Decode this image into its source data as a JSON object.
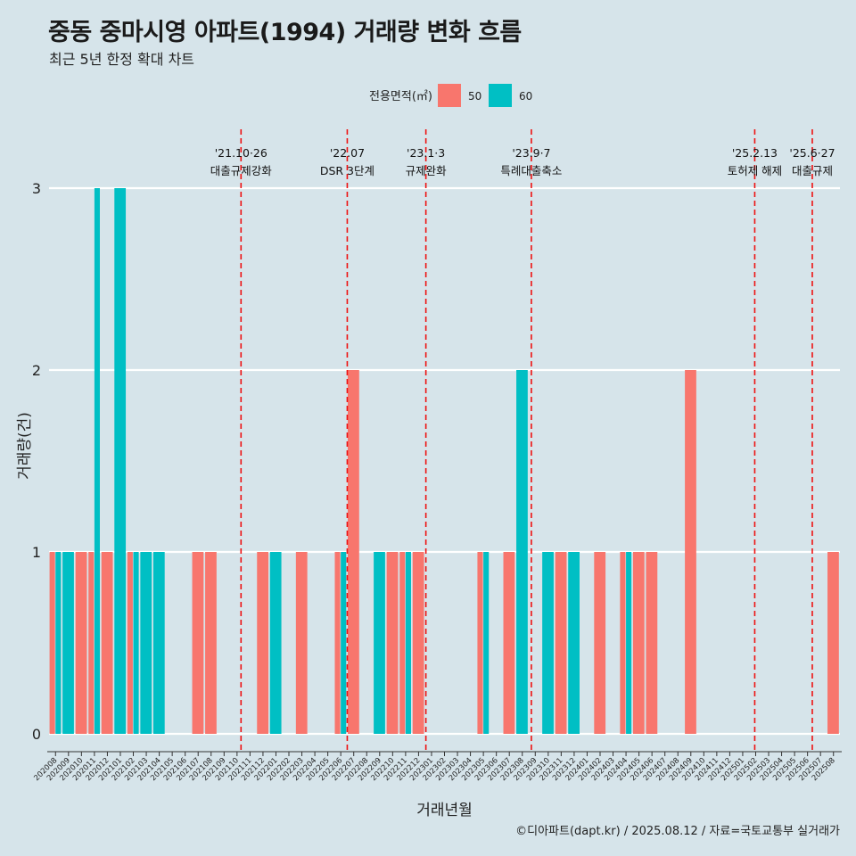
{
  "title": "중동 중마시영 아파트(1994) 거래량 변화 흐름",
  "subtitle": "최근 5년 한정 확대 차트",
  "caption": "©디아파트(dapt.kr) / 2025.08.12 / 자료=국토교통부 실거래가",
  "chart_data": {
    "type": "bar",
    "xlabel": "거래년월",
    "ylabel": "거래량(건)",
    "ylim": [
      0,
      3
    ],
    "yticks": [
      "0",
      "1",
      "2",
      "3"
    ],
    "legend": {
      "title": "전용면적(㎡)",
      "placement": "top",
      "entries": [
        {
          "name": "50",
          "color": "#f8766d"
        },
        {
          "name": "60",
          "color": "#00bfc4"
        }
      ]
    },
    "categories": [
      "202008",
      "202009",
      "202010",
      "202011",
      "202012",
      "202101",
      "202102",
      "202103",
      "202104",
      "202105",
      "202106",
      "202107",
      "202108",
      "202109",
      "202110",
      "202111",
      "202112",
      "202201",
      "202202",
      "202203",
      "202204",
      "202205",
      "202206",
      "202207",
      "202208",
      "202209",
      "202210",
      "202211",
      "202212",
      "202301",
      "202302",
      "202303",
      "202304",
      "202305",
      "202306",
      "202307",
      "202308",
      "202309",
      "202310",
      "202311",
      "202312",
      "202401",
      "202402",
      "202403",
      "202404",
      "202405",
      "202406",
      "202407",
      "202408",
      "202409",
      "202410",
      "202411",
      "202412",
      "202501",
      "202502",
      "202503",
      "202504",
      "202505",
      "202506",
      "202507",
      "202508"
    ],
    "series": [
      {
        "name": "50",
        "color": "#f8766d",
        "values": [
          1,
          0,
          1,
          1,
          1,
          0,
          1,
          0,
          0,
          0,
          0,
          1,
          1,
          0,
          0,
          0,
          1,
          0,
          0,
          1,
          0,
          0,
          1,
          2,
          0,
          0,
          1,
          1,
          1,
          0,
          0,
          0,
          0,
          1,
          0,
          1,
          0,
          0,
          0,
          1,
          0,
          0,
          1,
          0,
          1,
          1,
          1,
          0,
          0,
          2,
          0,
          0,
          0,
          0,
          0,
          0,
          0,
          0,
          0,
          0,
          1
        ]
      },
      {
        "name": "60",
        "color": "#00bfc4",
        "values": [
          1,
          1,
          0,
          3,
          0,
          3,
          1,
          1,
          1,
          0,
          0,
          0,
          0,
          0,
          0,
          0,
          0,
          1,
          0,
          0,
          0,
          0,
          1,
          0,
          0,
          1,
          0,
          1,
          0,
          0,
          0,
          0,
          0,
          1,
          0,
          0,
          2,
          0,
          1,
          0,
          1,
          0,
          0,
          0,
          1,
          0,
          0,
          0,
          0,
          0,
          0,
          0,
          0,
          0,
          0,
          0,
          0,
          0,
          0,
          0,
          0
        ]
      }
    ],
    "events": [
      {
        "date": "2021-10-26",
        "line1": "'21.10·26",
        "line2": "대출규제강화"
      },
      {
        "date": "2022-07-01",
        "line1": "'22.07",
        "line2": "DSR 3단계"
      },
      {
        "date": "2023-01-03",
        "line1": "'23.1·3",
        "line2": "규제완화"
      },
      {
        "date": "2023-09-07",
        "line1": "'23.9·7",
        "line2": "특례대출축소"
      },
      {
        "date": "2025-02-13",
        "line1": "'25.2.13",
        "line2": "토허제 해제"
      },
      {
        "date": "2025-06-27",
        "line1": "'25.6·27",
        "line2": "대출규제"
      }
    ]
  }
}
